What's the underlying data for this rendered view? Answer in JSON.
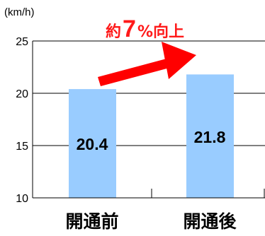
{
  "chart_data": {
    "type": "bar",
    "unit_label": "(km/h)",
    "categories": [
      "開通前",
      "開通後"
    ],
    "values": [
      20.4,
      21.8
    ],
    "value_labels": [
      "20.4",
      "21.8"
    ],
    "ylim": [
      10,
      25
    ],
    "yticks": [
      "10",
      "15",
      "20",
      "25"
    ],
    "grid": true,
    "annotation": {
      "prefix": "約",
      "number": "7",
      "suffix": "%向上"
    },
    "colors": {
      "bar": "#99ccff",
      "arrow": "#ff0000",
      "annotation": "#ff1a1a"
    }
  }
}
